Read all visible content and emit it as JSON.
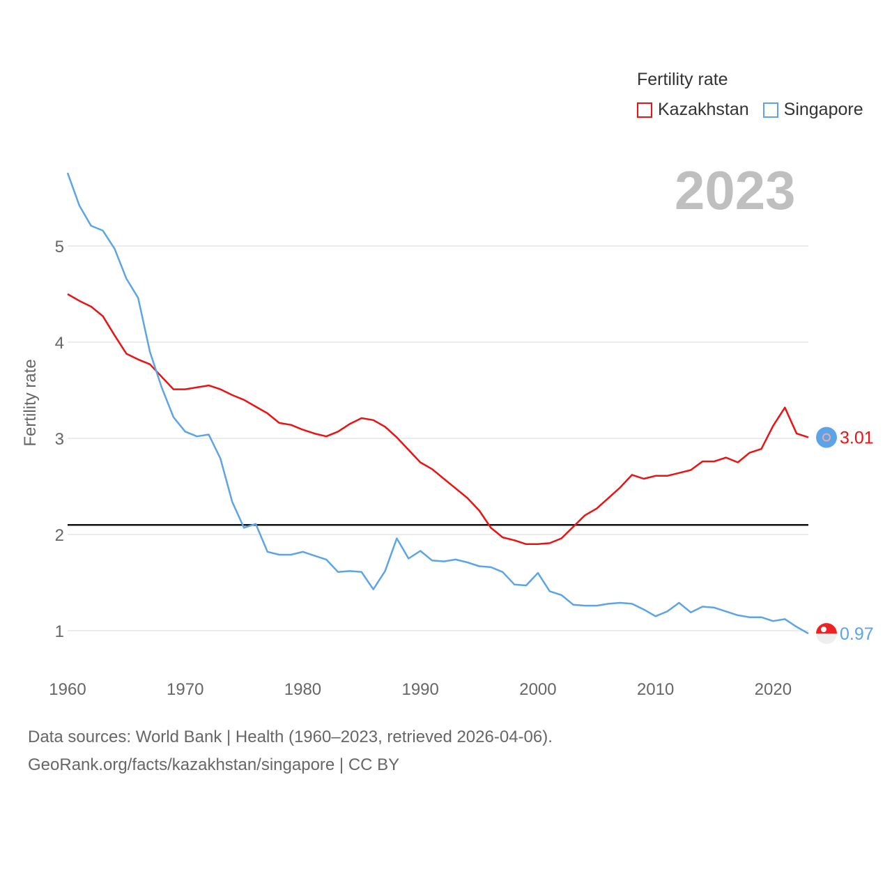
{
  "legend": {
    "title": "Fertility rate",
    "items": [
      {
        "label": "Kazakhstan",
        "color": "#ee1111"
      },
      {
        "label": "Singapore",
        "color": "#5ca4e8"
      }
    ]
  },
  "current_year": "2023",
  "footer": {
    "line1": "Data sources: World Bank | Health (1960–2023, retrieved 2026-04-06).",
    "line2": "GeoRank.org/facts/kazakhstan/singapore | CC BY"
  },
  "chart_data": {
    "type": "line",
    "title": "Fertility rate",
    "xlabel": "",
    "ylabel": "Fertility rate",
    "xlim": [
      1960,
      2023
    ],
    "ylim": [
      0.6,
      5.9
    ],
    "x_ticks": [
      1960,
      1970,
      1980,
      1990,
      2000,
      2010,
      2020
    ],
    "y_ticks": [
      1,
      2,
      3,
      4,
      5
    ],
    "reference_line": 2.1,
    "grid": true,
    "legend_position": "top-right",
    "x": [
      1960,
      1961,
      1962,
      1963,
      1964,
      1965,
      1966,
      1967,
      1968,
      1969,
      1970,
      1971,
      1972,
      1973,
      1974,
      1975,
      1976,
      1977,
      1978,
      1979,
      1980,
      1981,
      1982,
      1983,
      1984,
      1985,
      1986,
      1987,
      1988,
      1989,
      1990,
      1991,
      1992,
      1993,
      1994,
      1995,
      1996,
      1997,
      1998,
      1999,
      2000,
      2001,
      2002,
      2003,
      2004,
      2005,
      2006,
      2007,
      2008,
      2009,
      2010,
      2011,
      2012,
      2013,
      2014,
      2015,
      2016,
      2017,
      2018,
      2019,
      2020,
      2021,
      2022,
      2023
    ],
    "series": [
      {
        "name": "Kazakhstan",
        "color": "#ee1111",
        "end_label": "3.01",
        "values": [
          4.5,
          4.43,
          4.37,
          4.27,
          4.07,
          3.88,
          3.82,
          3.77,
          3.64,
          3.51,
          3.51,
          3.53,
          3.55,
          3.51,
          3.45,
          3.4,
          3.33,
          3.26,
          3.16,
          3.14,
          3.09,
          3.05,
          3.02,
          3.07,
          3.15,
          3.21,
          3.19,
          3.12,
          3.01,
          2.88,
          2.75,
          2.68,
          2.58,
          2.48,
          2.38,
          2.25,
          2.07,
          1.97,
          1.94,
          1.9,
          1.9,
          1.91,
          1.96,
          2.08,
          2.2,
          2.27,
          2.38,
          2.49,
          2.62,
          2.58,
          2.61,
          2.61,
          2.64,
          2.67,
          2.76,
          2.76,
          2.8,
          2.75,
          2.85,
          2.89,
          3.13,
          3.32,
          3.05,
          3.01
        ]
      },
      {
        "name": "Singapore",
        "color": "#5ca4e8",
        "end_label": "0.97",
        "values": [
          5.76,
          5.42,
          5.21,
          5.16,
          4.97,
          4.66,
          4.46,
          3.9,
          3.53,
          3.22,
          3.07,
          3.02,
          3.04,
          2.79,
          2.34,
          2.07,
          2.11,
          1.82,
          1.79,
          1.79,
          1.82,
          1.78,
          1.74,
          1.61,
          1.62,
          1.61,
          1.43,
          1.62,
          1.96,
          1.75,
          1.83,
          1.73,
          1.72,
          1.74,
          1.71,
          1.67,
          1.66,
          1.61,
          1.48,
          1.47,
          1.6,
          1.41,
          1.37,
          1.27,
          1.26,
          1.26,
          1.28,
          1.29,
          1.28,
          1.22,
          1.15,
          1.2,
          1.29,
          1.19,
          1.25,
          1.24,
          1.2,
          1.16,
          1.14,
          1.14,
          1.1,
          1.12,
          1.04,
          0.97
        ]
      }
    ]
  }
}
